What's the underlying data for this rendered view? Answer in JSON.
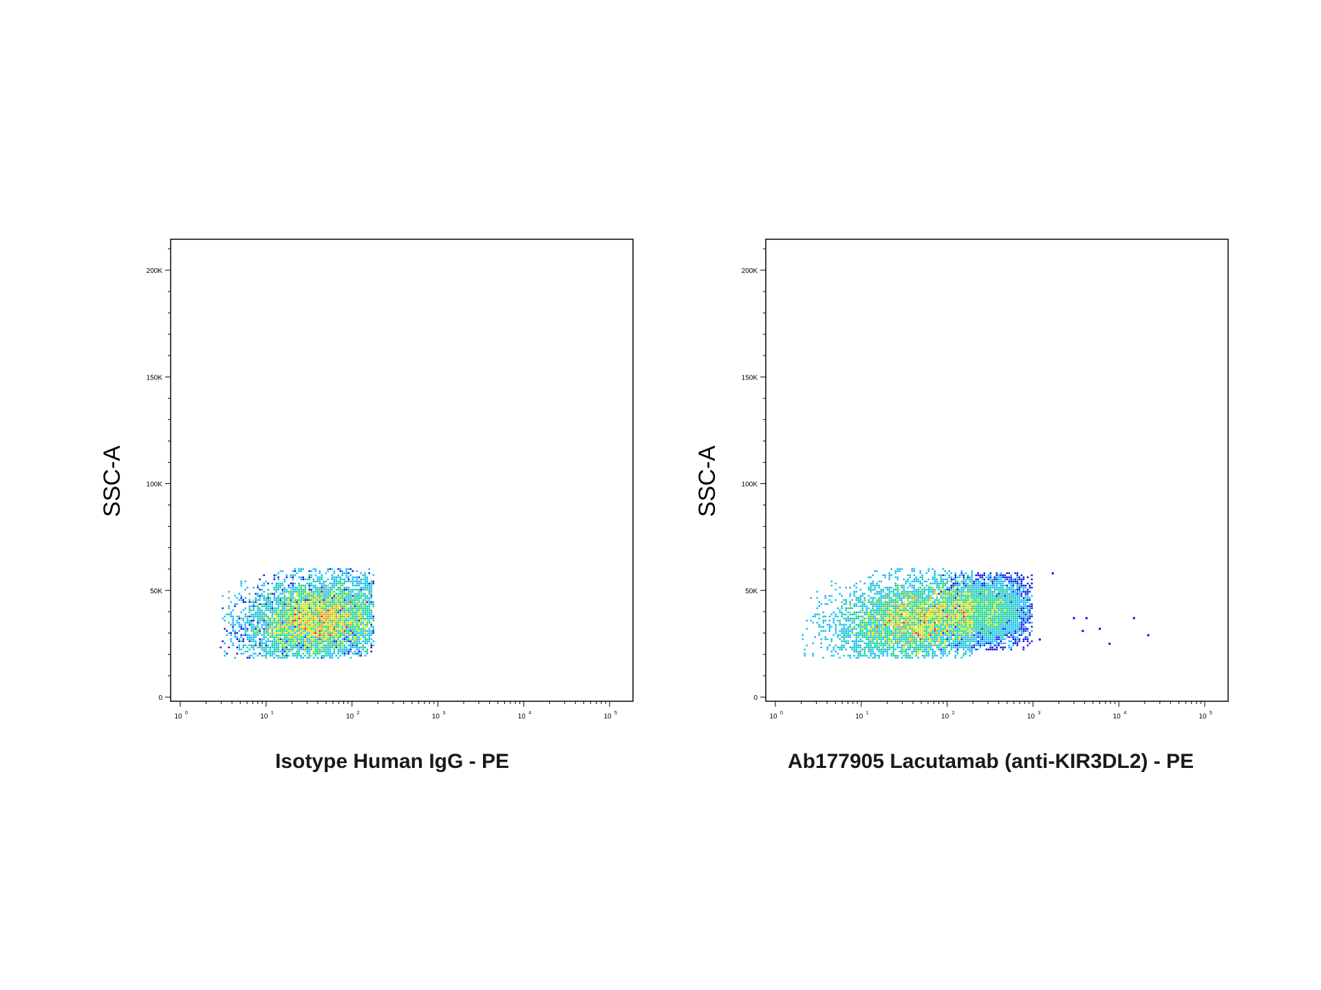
{
  "chart_data": [
    {
      "type": "scatter",
      "subtype": "density-dot-plot",
      "title": "",
      "xlabel": "Isotype Human IgG - PE",
      "ylabel": "SSC-A",
      "x_scale": "log",
      "xlim": [
        1,
        100000
      ],
      "ylim": [
        0,
        215000
      ],
      "x_ticks": [
        {
          "base": "10",
          "exp": "0"
        },
        {
          "base": "10",
          "exp": "1"
        },
        {
          "base": "10",
          "exp": "2"
        },
        {
          "base": "10",
          "exp": "3"
        },
        {
          "base": "10",
          "exp": "4"
        },
        {
          "base": "10",
          "exp": "5"
        }
      ],
      "y_ticks": [
        {
          "value": 0,
          "label": "0"
        },
        {
          "value": 50000,
          "label": "50K"
        },
        {
          "value": 100000,
          "label": "100K"
        },
        {
          "value": 150000,
          "label": "150K"
        },
        {
          "value": 200000,
          "label": "200K"
        }
      ],
      "grid": false,
      "populations": [
        {
          "x_center": 40,
          "y_center": 36000,
          "x_range": [
            3,
            180
          ],
          "y_range": [
            18000,
            60000
          ],
          "density": "high",
          "peak_x": 45,
          "peak_y": 35000
        }
      ],
      "outliers": []
    },
    {
      "type": "scatter",
      "subtype": "density-dot-plot",
      "title": "",
      "xlabel": "Ab177905 Lacutamab (anti-KIR3DL2) - PE",
      "ylabel": "SSC-A",
      "x_scale": "log",
      "xlim": [
        1,
        100000
      ],
      "ylim": [
        0,
        215000
      ],
      "x_ticks": [
        {
          "base": "10",
          "exp": "0"
        },
        {
          "base": "10",
          "exp": "1"
        },
        {
          "base": "10",
          "exp": "2"
        },
        {
          "base": "10",
          "exp": "3"
        },
        {
          "base": "10",
          "exp": "4"
        },
        {
          "base": "10",
          "exp": "5"
        }
      ],
      "y_ticks": [
        {
          "value": 0,
          "label": "0"
        },
        {
          "value": 50000,
          "label": "50K"
        },
        {
          "value": 100000,
          "label": "100K"
        },
        {
          "value": 150000,
          "label": "150K"
        },
        {
          "value": 200000,
          "label": "200K"
        }
      ],
      "grid": false,
      "populations": [
        {
          "x_center": 45,
          "y_center": 36000,
          "x_range": [
            2,
            200
          ],
          "y_range": [
            18000,
            60000
          ],
          "density": "high",
          "peak_x": 45,
          "peak_y": 34000
        },
        {
          "x_center": 300,
          "y_center": 40000,
          "x_range": [
            80,
            1000
          ],
          "y_range": [
            22000,
            58000
          ],
          "density": "low",
          "peak_x": 300,
          "peak_y": 40000
        }
      ],
      "outliers": [
        {
          "x": 1700,
          "y": 58000
        },
        {
          "x": 3000,
          "y": 37000
        },
        {
          "x": 4200,
          "y": 37000
        },
        {
          "x": 3800,
          "y": 31000
        },
        {
          "x": 6000,
          "y": 32000
        },
        {
          "x": 7800,
          "y": 25000
        },
        {
          "x": 15000,
          "y": 37000
        },
        {
          "x": 22000,
          "y": 29000
        },
        {
          "x": 1200,
          "y": 27000
        }
      ]
    }
  ],
  "colors": {
    "density_low": "#0000dd",
    "density_mid1": "#00b4ff",
    "density_mid2": "#00d27a",
    "density_mid3": "#c8e600",
    "density_high": "#ff8c00",
    "density_peak": "#dd0000",
    "axis": "#000000"
  }
}
